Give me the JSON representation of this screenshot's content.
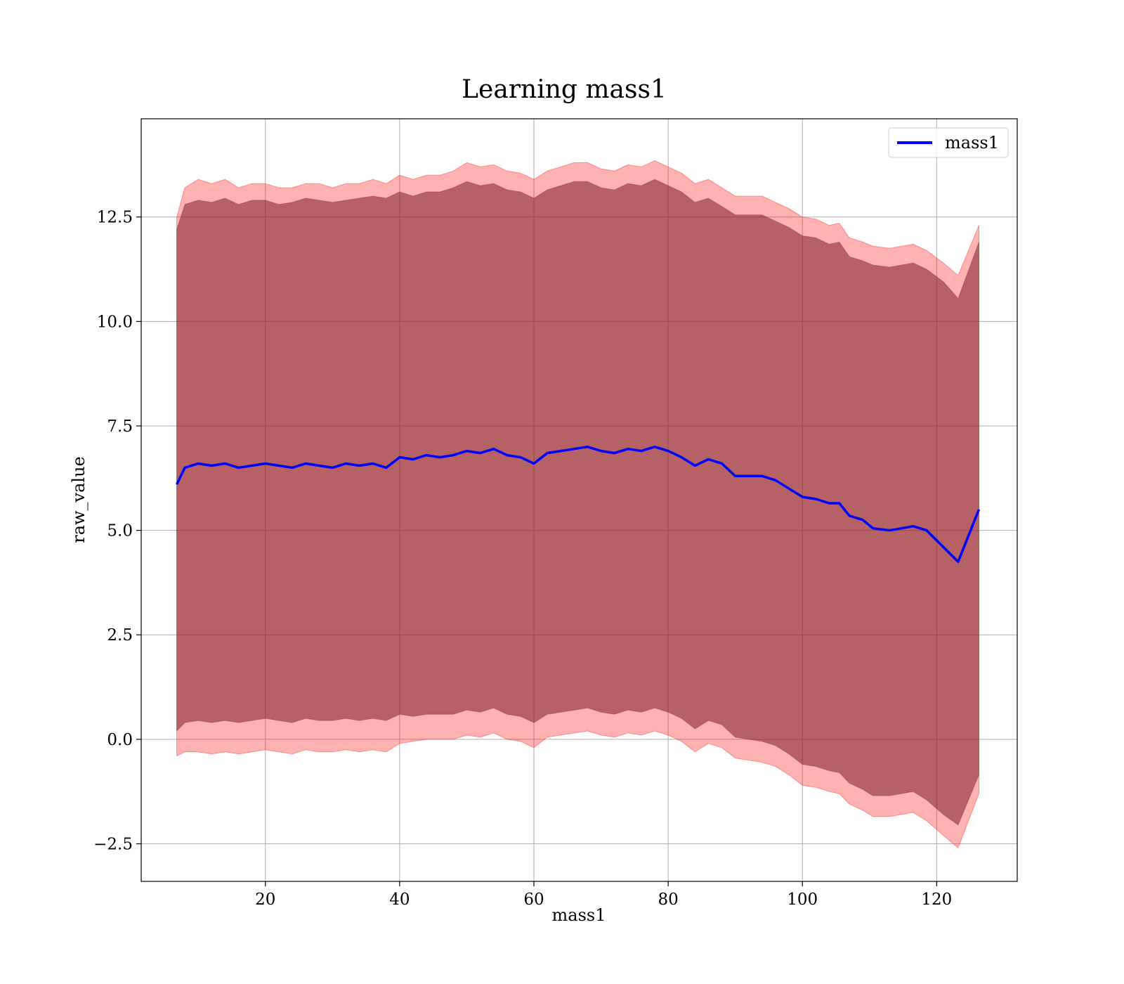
{
  "chart_data": {
    "type": "area",
    "title": "Learning mass1",
    "xlabel": "mass1",
    "ylabel": "raw_value",
    "xlim": [
      1.5,
      132
    ],
    "ylim": [
      -3.4,
      14.85
    ],
    "x_ticks": [
      20,
      40,
      60,
      80,
      100,
      120
    ],
    "x_tick_labels": [
      "20",
      "40",
      "60",
      "80",
      "100",
      "120"
    ],
    "y_ticks": [
      -2.5,
      0.0,
      2.5,
      5.0,
      7.5,
      10.0,
      12.5
    ],
    "y_tick_labels": [
      "−2.5",
      "0.0",
      "2.5",
      "5.0",
      "7.5",
      "10.0",
      "12.5"
    ],
    "grid": true,
    "legend": {
      "position": "upper-right",
      "entries": [
        "mass1"
      ]
    },
    "series": [
      {
        "name": "mass1",
        "color": "#0000ff",
        "x": [
          6.8,
          8,
          10,
          12,
          14,
          16,
          18,
          20,
          22,
          24,
          26,
          28,
          30,
          32,
          34,
          36,
          38,
          40,
          42,
          44,
          46,
          48,
          50,
          52,
          54,
          56,
          58,
          60,
          62,
          64,
          66,
          68,
          70,
          72,
          74,
          76,
          78,
          80,
          82,
          84,
          86,
          88,
          90,
          92,
          94,
          96,
          98,
          100,
          102,
          104,
          105.5,
          107,
          109,
          110.5,
          113,
          116.5,
          118.5,
          121,
          123.2,
          126.3
        ],
        "y": [
          6.1,
          6.5,
          6.6,
          6.55,
          6.6,
          6.5,
          6.55,
          6.6,
          6.55,
          6.5,
          6.6,
          6.55,
          6.5,
          6.6,
          6.55,
          6.6,
          6.5,
          6.75,
          6.7,
          6.8,
          6.75,
          6.8,
          6.9,
          6.85,
          6.95,
          6.8,
          6.75,
          6.6,
          6.85,
          6.9,
          6.95,
          7.0,
          6.9,
          6.85,
          6.95,
          6.9,
          7.0,
          6.9,
          6.75,
          6.55,
          6.7,
          6.6,
          6.3,
          6.3,
          6.3,
          6.2,
          6.0,
          5.8,
          5.75,
          5.65,
          5.65,
          5.35,
          5.25,
          5.05,
          5.0,
          5.1,
          5.0,
          4.6,
          4.25,
          5.5
        ]
      }
    ],
    "bands": [
      {
        "color": "#ff0000",
        "opacity": 0.3,
        "x": [
          6.8,
          8,
          10,
          12,
          14,
          16,
          18,
          20,
          22,
          24,
          26,
          28,
          30,
          32,
          34,
          36,
          38,
          40,
          42,
          44,
          46,
          48,
          50,
          52,
          54,
          56,
          58,
          60,
          62,
          64,
          66,
          68,
          70,
          72,
          74,
          76,
          78,
          80,
          82,
          84,
          86,
          88,
          90,
          92,
          94,
          96,
          98,
          100,
          102,
          104,
          105.5,
          107,
          109,
          110.5,
          113,
          116.5,
          118.5,
          121,
          123.2,
          126.3
        ],
        "upper": [
          12.5,
          13.2,
          13.4,
          13.3,
          13.4,
          13.2,
          13.3,
          13.3,
          13.2,
          13.2,
          13.3,
          13.3,
          13.2,
          13.3,
          13.3,
          13.4,
          13.3,
          13.5,
          13.4,
          13.5,
          13.5,
          13.6,
          13.8,
          13.7,
          13.75,
          13.6,
          13.55,
          13.4,
          13.6,
          13.7,
          13.8,
          13.8,
          13.65,
          13.6,
          13.75,
          13.7,
          13.85,
          13.7,
          13.55,
          13.3,
          13.4,
          13.2,
          13.0,
          13.0,
          13.0,
          12.85,
          12.7,
          12.5,
          12.45,
          12.3,
          12.35,
          12.0,
          11.9,
          11.8,
          11.75,
          11.85,
          11.7,
          11.4,
          11.1,
          12.3
        ],
        "lower": [
          -0.4,
          -0.3,
          -0.3,
          -0.35,
          -0.3,
          -0.35,
          -0.3,
          -0.25,
          -0.3,
          -0.35,
          -0.25,
          -0.3,
          -0.3,
          -0.25,
          -0.3,
          -0.25,
          -0.3,
          -0.1,
          -0.05,
          0.0,
          0.0,
          0.0,
          0.1,
          0.05,
          0.15,
          0.0,
          -0.05,
          -0.2,
          0.05,
          0.1,
          0.15,
          0.2,
          0.1,
          0.05,
          0.15,
          0.1,
          0.2,
          0.1,
          -0.05,
          -0.3,
          -0.1,
          -0.2,
          -0.45,
          -0.5,
          -0.55,
          -0.65,
          -0.85,
          -1.1,
          -1.15,
          -1.25,
          -1.3,
          -1.55,
          -1.7,
          -1.85,
          -1.85,
          -1.75,
          -1.95,
          -2.3,
          -2.6,
          -1.3
        ]
      },
      {
        "color": "#7a1f28",
        "opacity": 0.55,
        "x": [
          6.8,
          8,
          10,
          12,
          14,
          16,
          18,
          20,
          22,
          24,
          26,
          28,
          30,
          32,
          34,
          36,
          38,
          40,
          42,
          44,
          46,
          48,
          50,
          52,
          54,
          56,
          58,
          60,
          62,
          64,
          66,
          68,
          70,
          72,
          74,
          76,
          78,
          80,
          82,
          84,
          86,
          88,
          90,
          92,
          94,
          96,
          98,
          100,
          102,
          104,
          105.5,
          107,
          109,
          110.5,
          113,
          116.5,
          118.5,
          121,
          123.2,
          126.3
        ],
        "upper": [
          12.2,
          12.8,
          12.9,
          12.85,
          12.95,
          12.8,
          12.9,
          12.9,
          12.8,
          12.85,
          12.95,
          12.9,
          12.85,
          12.9,
          12.95,
          13.0,
          12.95,
          13.1,
          13.0,
          13.1,
          13.1,
          13.2,
          13.35,
          13.25,
          13.3,
          13.15,
          13.1,
          12.95,
          13.15,
          13.25,
          13.35,
          13.35,
          13.2,
          13.15,
          13.3,
          13.25,
          13.4,
          13.25,
          13.1,
          12.85,
          12.95,
          12.75,
          12.55,
          12.55,
          12.55,
          12.4,
          12.25,
          12.05,
          12.0,
          11.85,
          11.9,
          11.55,
          11.45,
          11.35,
          11.3,
          11.4,
          11.25,
          10.95,
          10.55,
          11.9
        ],
        "lower": [
          0.2,
          0.4,
          0.45,
          0.4,
          0.45,
          0.4,
          0.45,
          0.5,
          0.45,
          0.4,
          0.5,
          0.45,
          0.45,
          0.5,
          0.45,
          0.5,
          0.45,
          0.6,
          0.55,
          0.6,
          0.6,
          0.6,
          0.7,
          0.65,
          0.75,
          0.6,
          0.55,
          0.4,
          0.6,
          0.65,
          0.7,
          0.75,
          0.65,
          0.6,
          0.7,
          0.65,
          0.75,
          0.65,
          0.5,
          0.25,
          0.45,
          0.35,
          0.05,
          0.0,
          -0.05,
          -0.15,
          -0.35,
          -0.6,
          -0.65,
          -0.75,
          -0.8,
          -1.05,
          -1.2,
          -1.35,
          -1.35,
          -1.25,
          -1.45,
          -1.8,
          -2.05,
          -0.85
        ]
      }
    ]
  }
}
